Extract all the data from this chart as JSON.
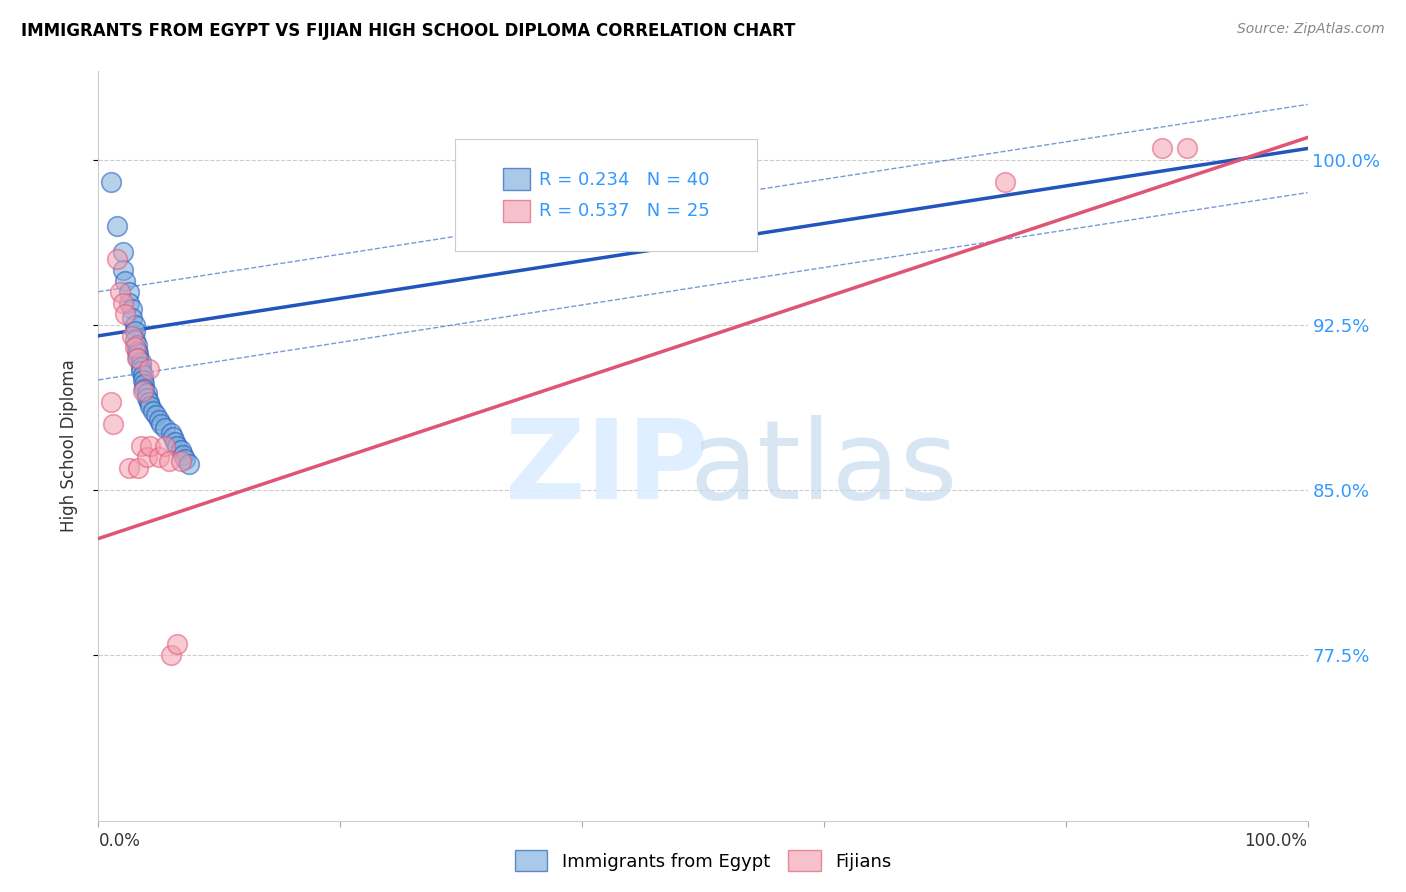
{
  "title": "IMMIGRANTS FROM EGYPT VS FIJIAN HIGH SCHOOL DIPLOMA CORRELATION CHART",
  "source": "Source: ZipAtlas.com",
  "ylabel": "High School Diploma",
  "ytick_vals": [
    0.775,
    0.85,
    0.925,
    1.0
  ],
  "ytick_labels": [
    "77.5%",
    "85.0%",
    "92.5%",
    "100.0%"
  ],
  "xlim": [
    0.0,
    1.0
  ],
  "ylim": [
    0.7,
    1.04
  ],
  "r_egypt": 0.234,
  "n_egypt": 40,
  "r_fijian": 0.537,
  "n_fijian": 25,
  "color_egypt": "#7AADDC",
  "color_fijian": "#F4A0B0",
  "color_egypt_line": "#2255BB",
  "color_fijian_line": "#E05575",
  "color_ytick": "#3399FF",
  "egypt_line_x0": 0.0,
  "egypt_line_y0": 0.92,
  "egypt_line_x1": 1.0,
  "egypt_line_y1": 1.005,
  "fijian_line_x0": 0.0,
  "fijian_line_y0": 0.828,
  "fijian_line_x1": 1.0,
  "fijian_line_y1": 1.01,
  "egypt_x": [
    0.01,
    0.015,
    0.02,
    0.02,
    0.022,
    0.025,
    0.025,
    0.028,
    0.028,
    0.03,
    0.03,
    0.03,
    0.032,
    0.032,
    0.033,
    0.033,
    0.035,
    0.035,
    0.035,
    0.037,
    0.037,
    0.038,
    0.038,
    0.04,
    0.04,
    0.042,
    0.043,
    0.045,
    0.048,
    0.05,
    0.052,
    0.055,
    0.06,
    0.062,
    0.063,
    0.065,
    0.068,
    0.07,
    0.072,
    0.075
  ],
  "egypt_y": [
    0.99,
    0.97,
    0.958,
    0.95,
    0.945,
    0.94,
    0.935,
    0.932,
    0.928,
    0.925,
    0.922,
    0.918,
    0.916,
    0.913,
    0.912,
    0.91,
    0.908,
    0.906,
    0.904,
    0.902,
    0.9,
    0.898,
    0.896,
    0.894,
    0.892,
    0.89,
    0.888,
    0.886,
    0.884,
    0.882,
    0.88,
    0.878,
    0.876,
    0.874,
    0.872,
    0.87,
    0.868,
    0.866,
    0.864,
    0.862
  ],
  "fijian_x": [
    0.01,
    0.012,
    0.015,
    0.018,
    0.02,
    0.022,
    0.025,
    0.028,
    0.03,
    0.032,
    0.033,
    0.035,
    0.037,
    0.04,
    0.042,
    0.043,
    0.05,
    0.055,
    0.058,
    0.06,
    0.065,
    0.068,
    0.75,
    0.88,
    0.9
  ],
  "fijian_y": [
    0.89,
    0.88,
    0.955,
    0.94,
    0.935,
    0.93,
    0.86,
    0.92,
    0.915,
    0.91,
    0.86,
    0.87,
    0.895,
    0.865,
    0.905,
    0.87,
    0.865,
    0.87,
    0.863,
    0.775,
    0.78,
    0.863,
    0.99,
    1.005,
    1.005
  ]
}
